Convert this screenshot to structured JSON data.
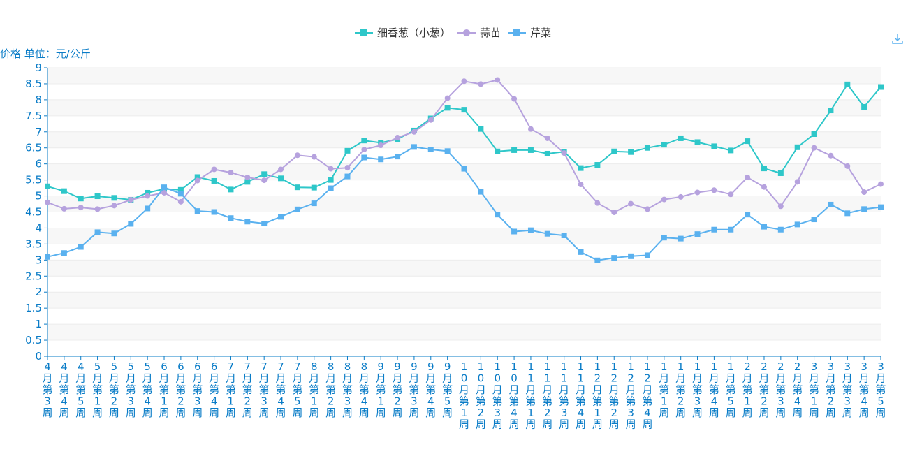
{
  "chart_data": {
    "type": "line",
    "ylabel": "价格 单位：元/公斤",
    "ylim": [
      0,
      9
    ],
    "yticks": [
      "0",
      "0.5",
      "1",
      "1.5",
      "2",
      "2.5",
      "3",
      "3.5",
      "4",
      "4.5",
      "5",
      "5.5",
      "6",
      "6.5",
      "7",
      "7.5",
      "8",
      "8.5",
      "9"
    ],
    "grid": true,
    "legend_position": "top-center",
    "categories": [
      "4月第3周",
      "4月第4周",
      "4月第5周",
      "5月第1周",
      "5月第2周",
      "5月第3周",
      "5月第4周",
      "6月第1周",
      "6月第2周",
      "6月第3周",
      "6月第4周",
      "7月第1周",
      "7月第2周",
      "7月第3周",
      "7月第4周",
      "7月第5周",
      "8月第1周",
      "8月第2周",
      "8月第3周",
      "8月第4周",
      "9月第1周",
      "9月第2周",
      "9月第3周",
      "9月第4周",
      "9月第5周",
      "10月第1周",
      "10月第2周",
      "10月第3周",
      "10月第4周",
      "11月第1周",
      "11月第2周",
      "11月第3周",
      "11月第4周",
      "12月第1周",
      "12月第2周",
      "12月第3周",
      "12月第4周",
      "1月第1周",
      "1月第2周",
      "1月第3周",
      "1月第4周",
      "1月第5周",
      "2月第1周",
      "2月第2周",
      "2月第3周",
      "2月第4周",
      "3月第1周",
      "3月第2周",
      "3月第3周",
      "3月第4周",
      "3月第5周"
    ],
    "series": [
      {
        "name": "细香葱（小葱）",
        "color": "#2ec7c9",
        "marker": "square",
        "values": [
          5.3,
          5.15,
          4.92,
          4.99,
          4.94,
          4.88,
          5.1,
          5.22,
          5.19,
          5.59,
          5.47,
          5.2,
          5.44,
          5.68,
          5.55,
          5.27,
          5.26,
          5.5,
          6.41,
          6.73,
          6.66,
          6.77,
          7.04,
          7.42,
          7.75,
          7.69,
          7.09,
          6.39,
          6.43,
          6.43,
          6.32,
          6.38,
          5.87,
          5.97,
          6.39,
          6.37,
          6.5,
          6.6,
          6.8,
          6.68,
          6.55,
          6.42,
          6.71,
          5.86,
          5.71,
          6.52,
          6.93,
          7.67,
          8.48,
          7.78,
          8.4
        ]
      },
      {
        "name": "蒜苗",
        "color": "#b6a2de",
        "marker": "circle",
        "values": [
          4.8,
          4.6,
          4.64,
          4.59,
          4.7,
          4.88,
          5.0,
          5.1,
          4.82,
          5.48,
          5.83,
          5.73,
          5.58,
          5.49,
          5.83,
          6.27,
          6.22,
          5.85,
          5.88,
          6.45,
          6.58,
          6.82,
          7.0,
          7.37,
          8.05,
          8.58,
          8.49,
          8.62,
          8.03,
          7.09,
          6.8,
          6.34,
          5.36,
          4.78,
          4.49,
          4.76,
          4.59,
          4.89,
          4.97,
          5.11,
          5.18,
          5.05,
          5.58,
          5.28,
          4.68,
          5.44,
          6.5,
          6.26,
          5.93,
          5.12,
          5.37
        ]
      },
      {
        "name": "芹菜",
        "color": "#5ab1ef",
        "marker": "square",
        "values": [
          3.1,
          3.22,
          3.41,
          3.87,
          3.83,
          4.13,
          4.61,
          5.27,
          5.07,
          4.53,
          4.5,
          4.31,
          4.2,
          4.14,
          4.35,
          4.58,
          4.77,
          5.24,
          5.61,
          6.2,
          6.14,
          6.23,
          6.53,
          6.45,
          6.4,
          5.85,
          5.13,
          4.42,
          3.89,
          3.93,
          3.82,
          3.77,
          3.25,
          2.99,
          3.07,
          3.12,
          3.15,
          3.7,
          3.67,
          3.81,
          3.95,
          3.95,
          4.42,
          4.04,
          3.95,
          4.11,
          4.27,
          4.73,
          4.46,
          4.59,
          4.65
        ]
      }
    ]
  },
  "toolbar": {
    "download_icon": "download-icon"
  }
}
